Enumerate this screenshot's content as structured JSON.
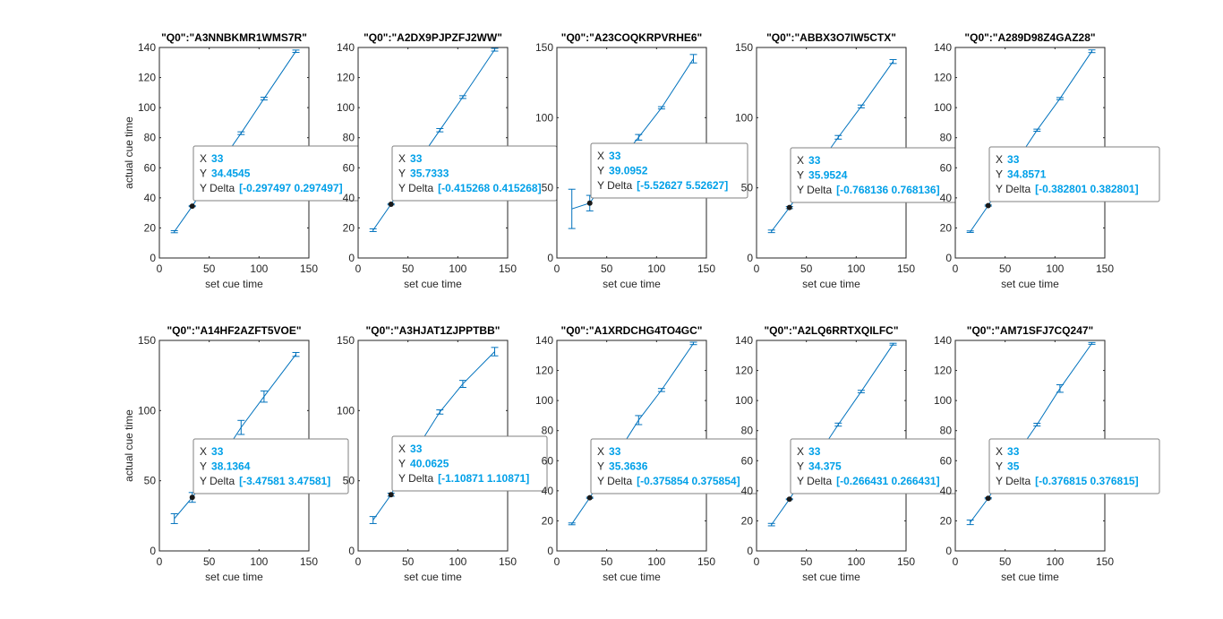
{
  "figure": {
    "background": "#ffffff",
    "series_color": "#0072bd",
    "tip_value_color": "#00a0e8",
    "marker_color": "#1a1a1a"
  },
  "chart_data": [
    {
      "type": "line",
      "title": "\"Q0\":\"A3NNBKMR1WMS7R\"",
      "xlabel": "set cue time",
      "ylabel": "actual cue time",
      "xlim": [
        0,
        150
      ],
      "ylim": [
        0,
        140
      ],
      "xticks": [
        0,
        50,
        100,
        150
      ],
      "yticks": [
        0,
        20,
        40,
        60,
        80,
        100,
        120,
        140
      ],
      "x": [
        15,
        33,
        58,
        82,
        105,
        137
      ],
      "y": [
        17.5,
        34.4545,
        60,
        83,
        106,
        137.5
      ],
      "err": [
        0.7,
        0.297497,
        0.7,
        0.9,
        0.9,
        0.8
      ],
      "tip": {
        "x": "33",
        "y": "34.4545",
        "delta": "[-0.297497 0.297497]",
        "x_key": "X",
        "y_key": "Y",
        "delta_key": "Y Delta"
      }
    },
    {
      "type": "line",
      "title": "\"Q0\":\"A2DX9PJPZFJ2WW\"",
      "xlabel": "set cue time",
      "ylabel": "actual cue time",
      "xlim": [
        0,
        150
      ],
      "ylim": [
        0,
        140
      ],
      "xticks": [
        0,
        50,
        100,
        150
      ],
      "yticks": [
        0,
        20,
        40,
        60,
        80,
        100,
        120,
        140
      ],
      "x": [
        15,
        33,
        58,
        82,
        105,
        137
      ],
      "y": [
        18.5,
        35.7333,
        62,
        85,
        107,
        138.5
      ],
      "err": [
        0.9,
        0.415268,
        0.9,
        1.1,
        0.9,
        0.9
      ],
      "tip": {
        "x": "33",
        "y": "35.7333",
        "delta": "[-0.415268 0.415268]",
        "x_key": "X",
        "y_key": "Y",
        "delta_key": "Y Delta"
      }
    },
    {
      "type": "line",
      "title": "\"Q0\":\"A23COQKRPVRHE6\"",
      "xlabel": "set cue time",
      "ylabel": "actual cue time",
      "xlim": [
        0,
        150
      ],
      "ylim": [
        0,
        150
      ],
      "xticks": [
        0,
        50,
        100,
        150
      ],
      "yticks": [
        0,
        50,
        100,
        150
      ],
      "x": [
        15,
        33,
        58,
        82,
        105,
        137
      ],
      "y": [
        35,
        39.0952,
        65,
        86,
        107,
        142
      ],
      "err": [
        14,
        5.52627,
        2,
        2,
        0.8,
        3
      ],
      "tip": {
        "x": "33",
        "y": "39.0952",
        "delta": "[-5.52627 5.52627]",
        "x_key": "X",
        "y_key": "Y",
        "delta_key": "Y Delta"
      }
    },
    {
      "type": "line",
      "title": "\"Q0\":\"ABBX3O7IW5CTX\"",
      "xlabel": "set cue time",
      "ylabel": "actual cue time",
      "xlim": [
        0,
        150
      ],
      "ylim": [
        0,
        150
      ],
      "xticks": [
        0,
        50,
        100,
        150
      ],
      "yticks": [
        0,
        50,
        100,
        150
      ],
      "x": [
        15,
        33,
        58,
        82,
        105,
        137
      ],
      "y": [
        19,
        35.9524,
        62,
        86,
        108,
        140
      ],
      "err": [
        0.9,
        0.768136,
        0.9,
        1.3,
        1,
        1.4
      ],
      "tip": {
        "x": "33",
        "y": "35.9524",
        "delta": "[-0.768136 0.768136]",
        "x_key": "X",
        "y_key": "Y",
        "delta_key": "Y Delta"
      }
    },
    {
      "type": "line",
      "title": "\"Q0\":\"A289D98Z4GAZ28\"",
      "xlabel": "set cue time",
      "ylabel": "actual cue time",
      "xlim": [
        0,
        150
      ],
      "ylim": [
        0,
        140
      ],
      "xticks": [
        0,
        50,
        100,
        150
      ],
      "yticks": [
        0,
        20,
        40,
        60,
        80,
        100,
        120,
        140
      ],
      "x": [
        15,
        33,
        58,
        82,
        105,
        137
      ],
      "y": [
        17.5,
        34.8571,
        61,
        85,
        106,
        137.5
      ],
      "err": [
        0.5,
        0.382801,
        0.6,
        0.7,
        0.7,
        0.9
      ],
      "tip": {
        "x": "33",
        "y": "34.8571",
        "delta": "[-0.382801 0.382801]",
        "x_key": "X",
        "y_key": "Y",
        "delta_key": "Y Delta"
      }
    },
    {
      "type": "line",
      "title": "\"Q0\":\"A14HF2AZFT5VOE\"",
      "xlabel": "set cue time",
      "ylabel": "actual cue time",
      "xlim": [
        0,
        150
      ],
      "ylim": [
        0,
        150
      ],
      "xticks": [
        0,
        50,
        100,
        150
      ],
      "yticks": [
        0,
        50,
        100,
        150
      ],
      "x": [
        15,
        33,
        58,
        82,
        105,
        137
      ],
      "y": [
        23,
        38.1364,
        62,
        88,
        110,
        140
      ],
      "err": [
        3.5,
        3.47581,
        3,
        5,
        4,
        1.4
      ],
      "tip": {
        "x": "33",
        "y": "38.1364",
        "delta": "[-3.47581 3.47581]",
        "x_key": "X",
        "y_key": "Y",
        "delta_key": "Y Delta"
      }
    },
    {
      "type": "line",
      "title": "\"Q0\":\"A3HJAT1ZJPPTBB\"",
      "xlabel": "set cue time",
      "ylabel": "actual cue time",
      "xlim": [
        0,
        150
      ],
      "ylim": [
        0,
        150
      ],
      "xticks": [
        0,
        50,
        100,
        150
      ],
      "yticks": [
        0,
        50,
        100,
        150
      ],
      "x": [
        15,
        33,
        58,
        82,
        105,
        137
      ],
      "y": [
        22,
        40.0625,
        72,
        99,
        119,
        142
      ],
      "err": [
        2.5,
        1.10871,
        2,
        1.5,
        2.5,
        3
      ],
      "tip": {
        "x": "33",
        "y": "40.0625",
        "delta": "[-1.10871 1.10871]",
        "x_key": "X",
        "y_key": "Y",
        "delta_key": "Y Delta"
      }
    },
    {
      "type": "line",
      "title": "\"Q0\":\"A1XRDCHG4TO4GC\"",
      "xlabel": "set cue time",
      "ylabel": "actual cue time",
      "xlim": [
        0,
        150
      ],
      "ylim": [
        0,
        140
      ],
      "xticks": [
        0,
        50,
        100,
        150
      ],
      "yticks": [
        0,
        20,
        40,
        60,
        80,
        100,
        120,
        140
      ],
      "x": [
        15,
        33,
        58,
        82,
        105,
        137
      ],
      "y": [
        18,
        35.3636,
        62,
        87,
        107,
        138
      ],
      "err": [
        0.6,
        0.375854,
        1,
        3,
        1,
        0.8
      ],
      "tip": {
        "x": "33",
        "y": "35.3636",
        "delta": "[-0.375854 0.375854]",
        "x_key": "X",
        "y_key": "Y",
        "delta_key": "Y Delta"
      }
    },
    {
      "type": "line",
      "title": "\"Q0\":\"A2LQ6RRTXQILFC\"",
      "xlabel": "set cue time",
      "ylabel": "actual cue time",
      "xlim": [
        0,
        150
      ],
      "ylim": [
        0,
        140
      ],
      "xticks": [
        0,
        50,
        100,
        150
      ],
      "yticks": [
        0,
        20,
        40,
        60,
        80,
        100,
        120,
        140
      ],
      "x": [
        15,
        33,
        58,
        82,
        105,
        137
      ],
      "y": [
        17.5,
        34.375,
        60,
        84,
        106,
        137.5
      ],
      "err": [
        0.8,
        0.266431,
        0.8,
        1,
        0.8,
        0.6
      ],
      "tip": {
        "x": "33",
        "y": "34.375",
        "delta": "[-0.266431 0.266431]",
        "x_key": "X",
        "y_key": "Y",
        "delta_key": "Y Delta"
      }
    },
    {
      "type": "line",
      "title": "\"Q0\":\"AM71SFJ7CQ247\"",
      "xlabel": "set cue time",
      "ylabel": "actual cue time",
      "xlim": [
        0,
        150
      ],
      "ylim": [
        0,
        140
      ],
      "xticks": [
        0,
        50,
        100,
        150
      ],
      "yticks": [
        0,
        20,
        40,
        60,
        80,
        100,
        120,
        140
      ],
      "x": [
        15,
        33,
        58,
        82,
        105,
        137
      ],
      "y": [
        19,
        35,
        61,
        84,
        108,
        138
      ],
      "err": [
        1.5,
        0.376815,
        1,
        0.9,
        2.5,
        0.6
      ],
      "tip": {
        "x": "33",
        "y": "35",
        "delta": "[-0.376815 0.376815]",
        "x_key": "X",
        "y_key": "Y",
        "delta_key": "Y Delta"
      }
    }
  ]
}
